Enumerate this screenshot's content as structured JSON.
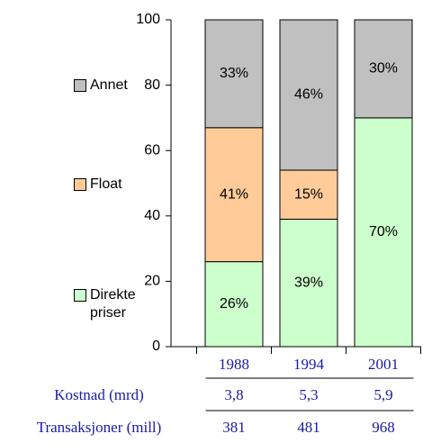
{
  "chart_data": {
    "type": "stacked_bar",
    "categories": [
      "1988",
      "1994",
      "2001"
    ],
    "series": [
      {
        "name": "Direkte priser",
        "color": "#ccffcc",
        "values": [
          26,
          39,
          70
        ],
        "value_labels": [
          "26%",
          "39%",
          "70%"
        ]
      },
      {
        "name": "Float",
        "color": "#ffcc99",
        "values": [
          41,
          15,
          null
        ],
        "value_labels": [
          "41%",
          "15%",
          null
        ]
      },
      {
        "name": "Annet",
        "color": "#c0c0c0",
        "values": [
          33,
          46,
          30
        ],
        "value_labels": [
          "33%",
          "46%",
          "30%"
        ]
      }
    ],
    "ylim": [
      0,
      100
    ],
    "yticks": [
      0,
      20,
      40,
      60,
      80,
      100
    ],
    "table": {
      "rows": [
        {
          "label": "Kostnad (mrd)",
          "values": [
            "3,8",
            "5,3",
            "5,9"
          ]
        },
        {
          "label": "Transaksjoner (mill)",
          "values": [
            381,
            481,
            968
          ]
        }
      ]
    }
  }
}
